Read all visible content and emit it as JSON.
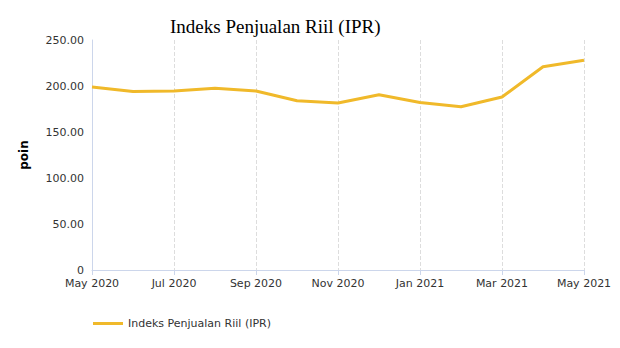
{
  "chart_data": {
    "type": "line",
    "title": "Indeks Penjualan Riil (IPR)",
    "y_label": "poin",
    "categories": [
      "May 2020",
      null,
      "Jul 2020",
      null,
      "Sep 2020",
      null,
      "Nov 2020",
      null,
      "Jan 2021",
      null,
      "Mar 2021",
      null,
      "May 2021"
    ],
    "series": [
      {
        "name": "Indeks Penjualan Riil (IPR)",
        "color": "#f0b92a",
        "values": [
          199.0,
          194.0,
          194.5,
          197.5,
          194.5,
          184.0,
          181.5,
          190.5,
          182.0,
          177.5,
          188.0,
          221.0,
          228.0
        ]
      }
    ],
    "ylim": [
      0,
      250
    ],
    "yticks": [
      0,
      {
        "value": 50,
        "label": "50.00"
      },
      {
        "value": 100,
        "label": "100.00"
      },
      {
        "value": 150,
        "label": "150.00"
      },
      {
        "value": 200,
        "label": "200.00"
      },
      {
        "value": 250,
        "label": "250.00"
      }
    ],
    "grid": true,
    "legend": "bottom"
  }
}
